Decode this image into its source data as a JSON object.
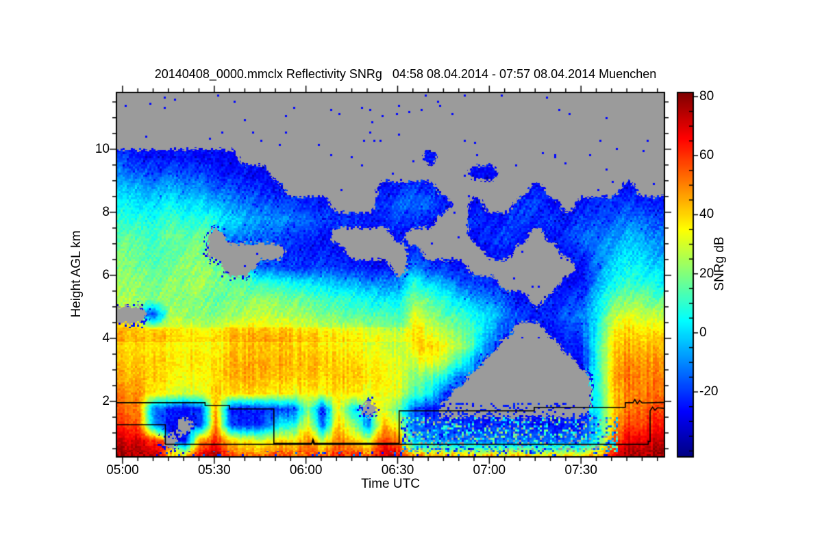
{
  "title": "20140408_0000.mmclx Reflectivity SNRg   04:58 08.04.2014 - 07:57 08.04.2014 Muenchen",
  "station": "Muenchen",
  "time_span": {
    "start": "04:58 08.04.2014",
    "end": "07:57 08.04.2014"
  },
  "plot": {
    "x_axis": {
      "label": "Time UTC",
      "tick_labels": [
        "05:00",
        "05:30",
        "06:00",
        "06:30",
        "07:00",
        "07:30"
      ],
      "tick_times_min": [
        2,
        32,
        62,
        92,
        122,
        152
      ],
      "minor_step_min": 5,
      "range_min": [
        0,
        179.3
      ]
    },
    "y_axis": {
      "label": "Height AGL km",
      "tick_labels": [
        "2",
        "4",
        "6",
        "8",
        "10"
      ],
      "tick_values": [
        2,
        4,
        6,
        8,
        10
      ],
      "minor_step_km": 0.5,
      "range_km": [
        0.24,
        11.8
      ]
    },
    "colorbar": {
      "label": "SNRg dB",
      "tick_labels": [
        "80",
        "60",
        "40",
        "20",
        "0",
        "-20"
      ],
      "tick_values": [
        80,
        60,
        40,
        20,
        0,
        -20
      ],
      "minor_step_db": 5,
      "range_db": [
        -42,
        81.4
      ],
      "colormap": "jet",
      "no_data_color": "#9b9b9b"
    },
    "overlay_lines": {
      "color": "#000000",
      "line_a": [
        [
          0,
          1.96
        ],
        [
          29,
          1.96
        ],
        [
          29,
          1.87
        ],
        [
          37,
          1.87
        ],
        [
          37,
          1.76
        ],
        [
          51.5,
          1.76
        ],
        [
          51.5,
          0.67
        ],
        [
          64,
          0.67
        ],
        [
          64.3,
          0.8
        ],
        [
          64.8,
          0.67
        ],
        [
          92.5,
          0.67
        ],
        [
          92.5,
          1.7
        ],
        [
          136.7,
          1.7
        ],
        [
          136.7,
          1.81
        ],
        [
          166.5,
          1.81
        ],
        [
          166.5,
          1.96
        ],
        [
          169,
          1.96
        ],
        [
          169.6,
          2.06
        ],
        [
          170.4,
          1.93
        ],
        [
          171.2,
          2.03
        ],
        [
          172,
          1.95
        ],
        [
          179.3,
          1.97
        ]
      ],
      "line_b": [
        [
          0,
          1.26
        ],
        [
          16,
          1.26
        ],
        [
          16,
          0.64
        ],
        [
          63.8,
          0.64
        ],
        [
          64.2,
          0.76
        ],
        [
          64.6,
          0.64
        ],
        [
          174,
          0.64
        ],
        [
          174,
          0.73
        ],
        [
          174.6,
          0.73
        ],
        [
          174.6,
          1.7
        ],
        [
          175.4,
          1.82
        ],
        [
          176.2,
          1.72
        ],
        [
          177,
          1.8
        ],
        [
          179.3,
          1.78
        ]
      ]
    }
  },
  "chart_data": {
    "type": "heatmap",
    "title": "20140408_0000.mmclx Reflectivity SNRg",
    "xlabel": "Time UTC",
    "ylabel": "Height AGL km",
    "value_label": "SNRg dB",
    "x_units": "minutes after 04:58 UTC",
    "null_means": "no echo (rendered gray)",
    "time_min": [
      2.5,
      7.5,
      12.5,
      17.5,
      22.5,
      27.5,
      32.5,
      37.5,
      42.5,
      47.5,
      52.5,
      57.5,
      62.5,
      67.5,
      72.5,
      77.5,
      82.5,
      87.5,
      92.5,
      97.5,
      102.5,
      107.5,
      112.5,
      117.5,
      122.5,
      127.5,
      132.5,
      137.5,
      142.5,
      147.5,
      152.5,
      157.5,
      162.5,
      167.5,
      172.5,
      177.5
    ],
    "heights_km": [
      0.25,
      0.75,
      1.25,
      1.75,
      2.25,
      2.75,
      3.25,
      3.75,
      4.25,
      4.75,
      5.25,
      5.75,
      6.25,
      6.75,
      7.25,
      7.75,
      8.25,
      8.75,
      9.25,
      9.75,
      10.25,
      10.75,
      11.25,
      11.75
    ],
    "snr_db_grid": [
      [
        78,
        78,
        75,
        45,
        45,
        70,
        75,
        55,
        50,
        52,
        55,
        52,
        60,
        55,
        62,
        58,
        55,
        75,
        70,
        48,
        46,
        45,
        45,
        44,
        44,
        43,
        43,
        42,
        42,
        42,
        42,
        45,
        68,
        78,
        78,
        78
      ],
      [
        72,
        70,
        60,
        null,
        -25,
        50,
        60,
        40,
        35,
        30,
        40,
        35,
        50,
        30,
        52,
        40,
        30,
        60,
        50,
        -5,
        -8,
        -10,
        -12,
        -12,
        -12,
        -12,
        -14,
        -14,
        -15,
        -15,
        -15,
        5,
        55,
        68,
        70,
        72
      ],
      [
        60,
        55,
        -10,
        -25,
        null,
        -20,
        50,
        -20,
        -22,
        -20,
        0,
        5,
        35,
        -15,
        42,
        20,
        -10,
        45,
        30,
        -15,
        -18,
        -20,
        -22,
        -22,
        -22,
        -22,
        -24,
        -24,
        -25,
        -25,
        -25,
        0,
        45,
        58,
        60,
        62
      ],
      [
        55,
        50,
        -15,
        -20,
        -25,
        -22,
        45,
        -25,
        -25,
        -22,
        -18,
        -20,
        20,
        -22,
        35,
        0,
        null,
        30,
        15,
        -15,
        -25,
        null,
        null,
        null,
        null,
        null,
        null,
        null,
        null,
        null,
        null,
        2,
        40,
        52,
        55,
        56
      ],
      [
        50,
        48,
        35,
        35,
        30,
        32,
        40,
        38,
        40,
        38,
        36,
        34,
        36,
        34,
        38,
        35,
        32,
        34,
        30,
        12,
        5,
        -20,
        null,
        null,
        null,
        null,
        null,
        null,
        null,
        null,
        null,
        5,
        42,
        50,
        52,
        52
      ],
      [
        45,
        45,
        40,
        38,
        35,
        36,
        38,
        42,
        45,
        44,
        42,
        40,
        42,
        40,
        42,
        40,
        38,
        36,
        32,
        20,
        15,
        5,
        -15,
        null,
        null,
        null,
        null,
        null,
        null,
        null,
        null,
        5,
        45,
        52,
        50,
        50
      ],
      [
        42,
        42,
        40,
        40,
        38,
        38,
        36,
        44,
        45,
        46,
        44,
        42,
        44,
        42,
        40,
        38,
        36,
        34,
        30,
        28,
        35,
        25,
        10,
        -10,
        null,
        null,
        null,
        null,
        null,
        null,
        -25,
        8,
        42,
        50,
        48,
        46
      ],
      [
        40,
        40,
        38,
        38,
        36,
        36,
        34,
        40,
        42,
        42,
        42,
        40,
        40,
        38,
        36,
        34,
        32,
        30,
        26,
        38,
        40,
        35,
        25,
        10,
        -15,
        null,
        null,
        null,
        null,
        -25,
        -20,
        8,
        40,
        45,
        44,
        42
      ],
      [
        38,
        36,
        35,
        35,
        32,
        30,
        28,
        35,
        36,
        38,
        36,
        34,
        32,
        30,
        28,
        26,
        24,
        22,
        18,
        40,
        30,
        25,
        18,
        12,
        -5,
        -18,
        null,
        null,
        -25,
        -20,
        -15,
        5,
        35,
        40,
        38,
        36
      ],
      [
        null,
        null,
        -20,
        25,
        22,
        20,
        18,
        22,
        25,
        28,
        26,
        24,
        22,
        20,
        18,
        16,
        14,
        12,
        10,
        32,
        22,
        15,
        10,
        5,
        0,
        -10,
        -20,
        -25,
        -20,
        -15,
        -12,
        2,
        25,
        30,
        28,
        26
      ],
      [
        25,
        22,
        20,
        22,
        20,
        22,
        15,
        18,
        20,
        22,
        20,
        18,
        15,
        12,
        10,
        8,
        5,
        2,
        0,
        22,
        15,
        8,
        0,
        -8,
        -10,
        -18,
        -25,
        null,
        -25,
        -20,
        -18,
        0,
        15,
        20,
        18,
        15
      ],
      [
        22,
        20,
        18,
        20,
        22,
        25,
        20,
        15,
        12,
        10,
        8,
        5,
        2,
        0,
        -2,
        -5,
        -8,
        -10,
        -12,
        8,
        0,
        -5,
        -15,
        -20,
        -22,
        null,
        null,
        null,
        null,
        -25,
        -25,
        -8,
        5,
        10,
        8,
        5
      ],
      [
        20,
        18,
        15,
        18,
        20,
        22,
        18,
        null,
        null,
        -15,
        -18,
        -20,
        -20,
        -18,
        -20,
        -22,
        -25,
        -25,
        null,
        -12,
        -18,
        -20,
        -25,
        null,
        null,
        null,
        null,
        null,
        null,
        null,
        -25,
        -12,
        0,
        5,
        2,
        -2
      ],
      [
        18,
        15,
        12,
        15,
        18,
        20,
        null,
        null,
        null,
        null,
        null,
        -22,
        -25,
        -22,
        -25,
        null,
        null,
        null,
        null,
        -22,
        null,
        null,
        null,
        null,
        -25,
        -25,
        null,
        null,
        null,
        -25,
        -20,
        -10,
        -5,
        0,
        -2,
        -8
      ],
      [
        15,
        12,
        10,
        18,
        15,
        15,
        null,
        -10,
        -12,
        -15,
        -18,
        -20,
        -22,
        -25,
        null,
        null,
        null,
        null,
        -25,
        null,
        null,
        null,
        null,
        -25,
        -20,
        -18,
        -25,
        null,
        -25,
        -20,
        -15,
        -12,
        -10,
        -5,
        -8,
        -12
      ],
      [
        10,
        8,
        5,
        12,
        8,
        10,
        5,
        0,
        -5,
        -8,
        -10,
        -12,
        -15,
        -18,
        -20,
        -22,
        -25,
        -22,
        -18,
        -20,
        -25,
        null,
        null,
        -20,
        -25,
        -22,
        -18,
        -22,
        -20,
        -25,
        -20,
        -18,
        -15,
        -12,
        -15,
        -18
      ],
      [
        5,
        2,
        0,
        5,
        0,
        2,
        -5,
        -8,
        -12,
        -15,
        -18,
        -20,
        -22,
        -25,
        null,
        null,
        null,
        -20,
        -15,
        -12,
        -15,
        -25,
        null,
        -25,
        null,
        null,
        -20,
        -18,
        -25,
        null,
        -25,
        -22,
        -20,
        -18,
        -22,
        -25
      ],
      [
        0,
        -5,
        -8,
        -5,
        -10,
        -8,
        -15,
        -18,
        -20,
        -22,
        -25,
        null,
        null,
        null,
        null,
        null,
        null,
        -25,
        -22,
        -18,
        -22,
        null,
        null,
        null,
        null,
        null,
        null,
        -25,
        null,
        null,
        null,
        null,
        null,
        -25,
        null,
        null
      ],
      [
        -10,
        -15,
        -18,
        -15,
        -20,
        -18,
        -22,
        -25,
        -26,
        -28,
        null,
        null,
        null,
        null,
        null,
        null,
        null,
        null,
        null,
        null,
        null,
        null,
        null,
        -28,
        -25,
        null,
        null,
        null,
        null,
        null,
        null,
        null,
        null,
        null,
        null,
        null
      ],
      [
        -20,
        -22,
        -25,
        -25,
        -26,
        -28,
        -26,
        -28,
        null,
        null,
        null,
        null,
        null,
        null,
        null,
        null,
        null,
        null,
        null,
        null,
        -25,
        null,
        null,
        null,
        null,
        null,
        null,
        null,
        null,
        null,
        null,
        null,
        null,
        null,
        null,
        null
      ],
      [
        null,
        null,
        null,
        null,
        null,
        null,
        null,
        null,
        null,
        null,
        null,
        null,
        null,
        null,
        null,
        null,
        null,
        null,
        null,
        null,
        null,
        null,
        null,
        null,
        null,
        null,
        null,
        null,
        null,
        null,
        null,
        null,
        null,
        null,
        null,
        null
      ],
      [
        null,
        null,
        null,
        null,
        null,
        null,
        null,
        null,
        null,
        null,
        null,
        null,
        null,
        null,
        null,
        null,
        null,
        null,
        null,
        null,
        null,
        null,
        null,
        null,
        null,
        null,
        null,
        null,
        null,
        null,
        null,
        null,
        null,
        null,
        null,
        null
      ],
      [
        null,
        null,
        null,
        null,
        null,
        null,
        null,
        null,
        null,
        null,
        null,
        null,
        null,
        null,
        null,
        null,
        null,
        null,
        null,
        null,
        null,
        null,
        null,
        null,
        null,
        null,
        null,
        null,
        null,
        null,
        null,
        null,
        null,
        null,
        null,
        null
      ],
      [
        null,
        null,
        null,
        null,
        null,
        null,
        null,
        null,
        null,
        null,
        null,
        null,
        null,
        null,
        null,
        null,
        null,
        null,
        null,
        null,
        null,
        null,
        null,
        null,
        null,
        null,
        null,
        null,
        null,
        null,
        null,
        null,
        null,
        null,
        null,
        null
      ]
    ]
  }
}
